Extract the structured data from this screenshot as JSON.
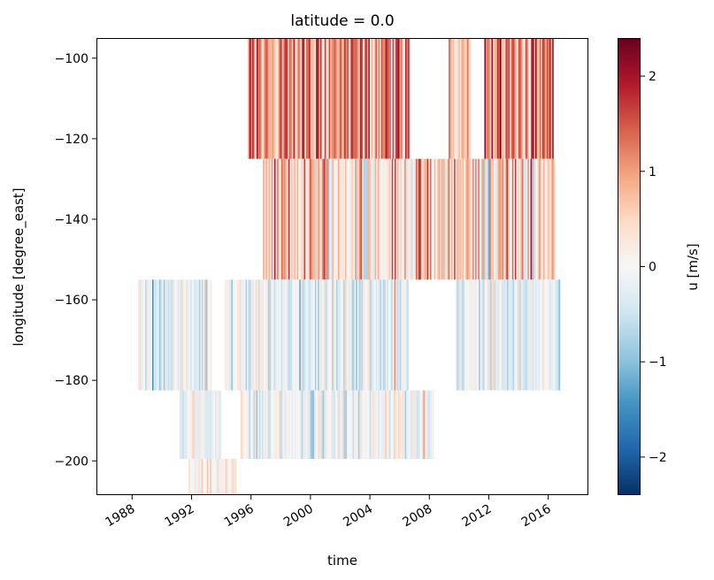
{
  "chart_data": {
    "type": "heatmap",
    "title": "latitude = 0.0",
    "xlabel": "time",
    "ylabel": "longitude [degree_east]",
    "colorbar_label": "u [m/s]",
    "colormap": "RdBu_r",
    "color_range": [
      -2.4,
      2.4
    ],
    "xlim": [
      1985.6,
      2018.7
    ],
    "ylim": [
      -208.5,
      -95
    ],
    "x_ticks": [
      1988,
      1992,
      1996,
      2000,
      2004,
      2008,
      2012,
      2016
    ],
    "x_tick_labels": [
      "1988",
      "1992",
      "1996",
      "2000",
      "2004",
      "2008",
      "2012",
      "2016"
    ],
    "y_ticks": [
      -100,
      -120,
      -140,
      -160,
      -180,
      -200
    ],
    "y_tick_labels": [
      "−100",
      "−120",
      "−140",
      "−160",
      "−180",
      "−200"
    ],
    "colorbar_ticks": [
      2,
      1,
      0,
      -1,
      -2
    ],
    "colorbar_tick_labels": [
      "2",
      "1",
      "0",
      "−1",
      "−2"
    ],
    "bands": [
      {
        "lon_min": -125,
        "lon_max": -95,
        "segments": [
          [
            1995.8,
            2006.7
          ],
          [
            2009.3,
            2010.8
          ],
          [
            2011.7,
            2016.4
          ]
        ],
        "mean": 1.1,
        "spread": 0.9
      },
      {
        "lon_min": -155,
        "lon_max": -125,
        "segments": [
          [
            1996.8,
            2016.5
          ]
        ],
        "mean": 0.55,
        "spread": 0.95
      },
      {
        "lon_min": -182.5,
        "lon_max": -155,
        "segments": [
          [
            1988.4,
            1993.4
          ],
          [
            1994.2,
            2006.6
          ],
          [
            2009.8,
            2016.8
          ]
        ],
        "mean": -0.2,
        "spread": 0.55
      },
      {
        "lon_min": -199.5,
        "lon_max": -182.5,
        "segments": [
          [
            1991.2,
            1994.0
          ],
          [
            1995.3,
            2008.3
          ]
        ],
        "mean": -0.15,
        "spread": 0.55
      },
      {
        "lon_min": -208.5,
        "lon_max": -199.5,
        "segments": [
          [
            1991.8,
            1995.0
          ]
        ],
        "mean": 0.1,
        "spread": 0.45
      }
    ]
  }
}
